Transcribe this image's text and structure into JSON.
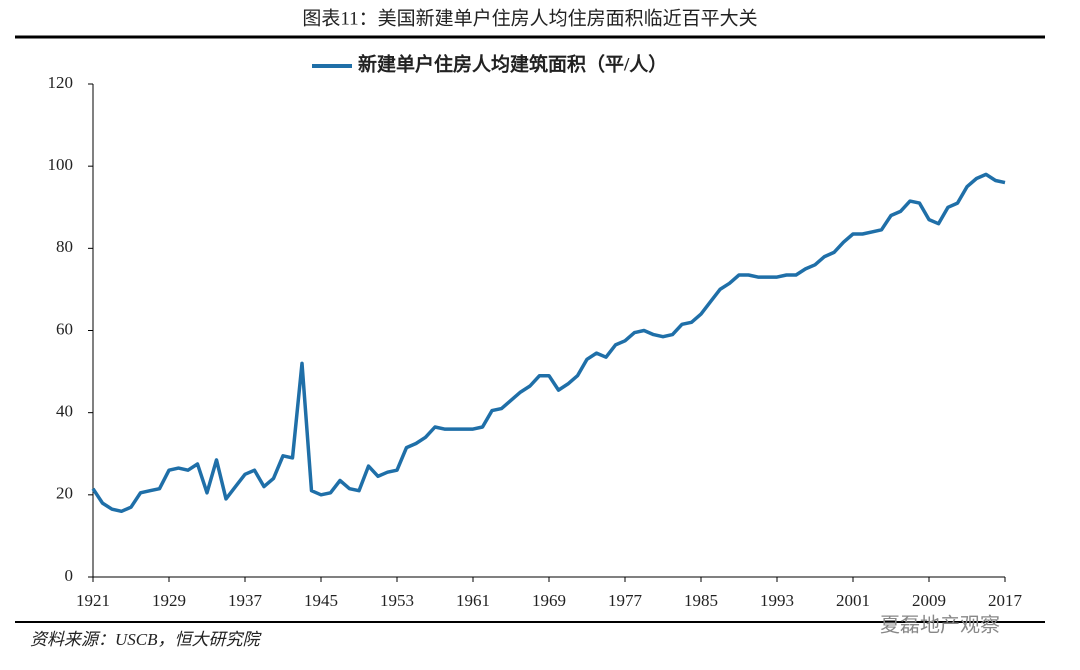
{
  "title": "图表11：美国新建单户住房人均住房面积临近百平大关",
  "source": "资料来源：USCB，恒大研究院",
  "watermark": "夏磊地产观察",
  "chart_data": {
    "type": "line",
    "x": [
      1921,
      1922,
      1923,
      1924,
      1925,
      1926,
      1927,
      1928,
      1929,
      1930,
      1931,
      1932,
      1933,
      1934,
      1935,
      1936,
      1937,
      1938,
      1939,
      1940,
      1941,
      1942,
      1943,
      1944,
      1945,
      1946,
      1947,
      1948,
      1949,
      1950,
      1951,
      1952,
      1953,
      1954,
      1955,
      1956,
      1957,
      1958,
      1959,
      1960,
      1961,
      1962,
      1963,
      1964,
      1965,
      1966,
      1967,
      1968,
      1969,
      1970,
      1971,
      1972,
      1973,
      1974,
      1975,
      1976,
      1977,
      1978,
      1979,
      1980,
      1981,
      1982,
      1983,
      1984,
      1985,
      1986,
      1987,
      1988,
      1989,
      1990,
      1991,
      1992,
      1993,
      1994,
      1995,
      1996,
      1997,
      1998,
      1999,
      2000,
      2001,
      2002,
      2003,
      2004,
      2005,
      2006,
      2007,
      2008,
      2009,
      2010,
      2011,
      2012,
      2013,
      2014,
      2015,
      2016,
      2017
    ],
    "series": [
      {
        "name": "新建单户住房人均建筑面积（平/人）",
        "color": "#1f6fa8",
        "values": [
          21.5,
          18,
          16.5,
          16,
          17,
          20.5,
          21,
          21.5,
          26,
          26.5,
          26,
          27.5,
          20.5,
          28.5,
          19,
          22,
          25,
          26,
          22,
          24,
          29.5,
          29,
          52,
          21,
          20,
          20.5,
          23.5,
          21.5,
          21,
          27,
          24.5,
          25.5,
          26,
          31.5,
          32.5,
          34,
          36.5,
          36,
          36,
          36,
          36,
          36.5,
          40.5,
          41,
          43,
          45,
          46.5,
          49,
          49,
          45.5,
          47,
          49,
          53,
          54.5,
          53.5,
          56.5,
          57.5,
          59.5,
          60,
          59,
          58.5,
          59,
          61.5,
          62,
          64,
          67,
          70,
          71.5,
          73.5,
          73.5,
          73,
          73,
          73,
          73.5,
          73.5,
          75,
          76,
          78,
          79,
          81.5,
          83.5,
          83.5,
          84,
          84.5,
          88,
          89,
          91.5,
          91,
          87,
          86,
          90,
          91,
          95,
          97,
          98,
          96.5,
          96
        ]
      }
    ],
    "xlim": [
      1921,
      2017
    ],
    "xticks": [
      1921,
      1929,
      1937,
      1945,
      1953,
      1961,
      1969,
      1977,
      1985,
      1993,
      2001,
      2009,
      2017
    ],
    "ylim": [
      0,
      120
    ],
    "yticks": [
      0,
      20,
      40,
      60,
      80,
      100,
      120
    ]
  }
}
